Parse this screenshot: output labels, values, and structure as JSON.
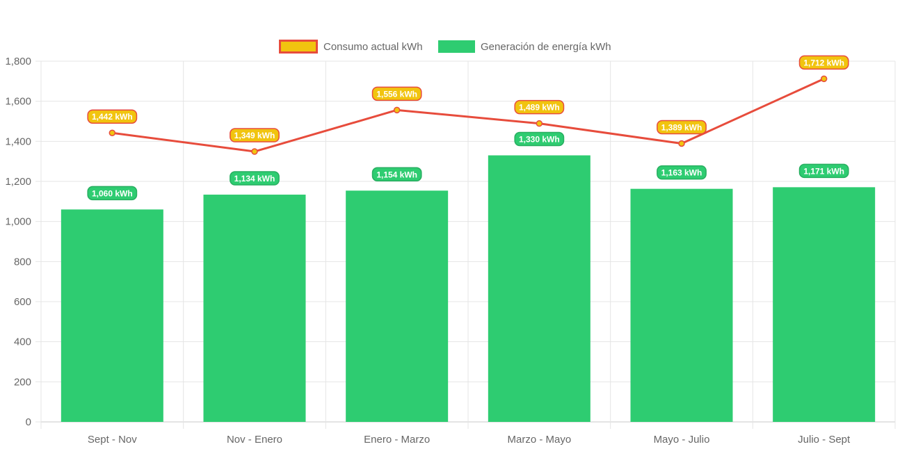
{
  "chart_data": {
    "type": "bar",
    "categories": [
      "Sept - Nov",
      "Nov - Enero",
      "Enero - Marzo",
      "Marzo - Mayo",
      "Mayo - Julio",
      "Julio - Sept"
    ],
    "series": [
      {
        "name": "Consumo actual kWh",
        "type": "line",
        "values": [
          1442,
          1349,
          1556,
          1489,
          1389,
          1712
        ],
        "labels": [
          "1,442 kWh",
          "1,349 kWh",
          "1,556 kWh",
          "1,489 kWh",
          "1,389 kWh",
          "1,712 kWh"
        ],
        "line_color": "#e74c3c",
        "fill_color": "#f1c40f"
      },
      {
        "name": "Generación de energía kWh",
        "type": "bar",
        "values": [
          1060,
          1134,
          1154,
          1330,
          1163,
          1171
        ],
        "labels": [
          "1,060 kWh",
          "1,134 kWh",
          "1,154 kWh",
          "1,330 kWh",
          "1,163 kWh",
          "1,171 kWh"
        ],
        "color": "#2ecc71"
      }
    ],
    "y_ticks": [
      "0",
      "200",
      "400",
      "600",
      "800",
      "1,000",
      "1,200",
      "1,400",
      "1,600",
      "1,800"
    ],
    "ylim": [
      0,
      1800
    ],
    "grid": true,
    "legend_position": "top-center"
  }
}
